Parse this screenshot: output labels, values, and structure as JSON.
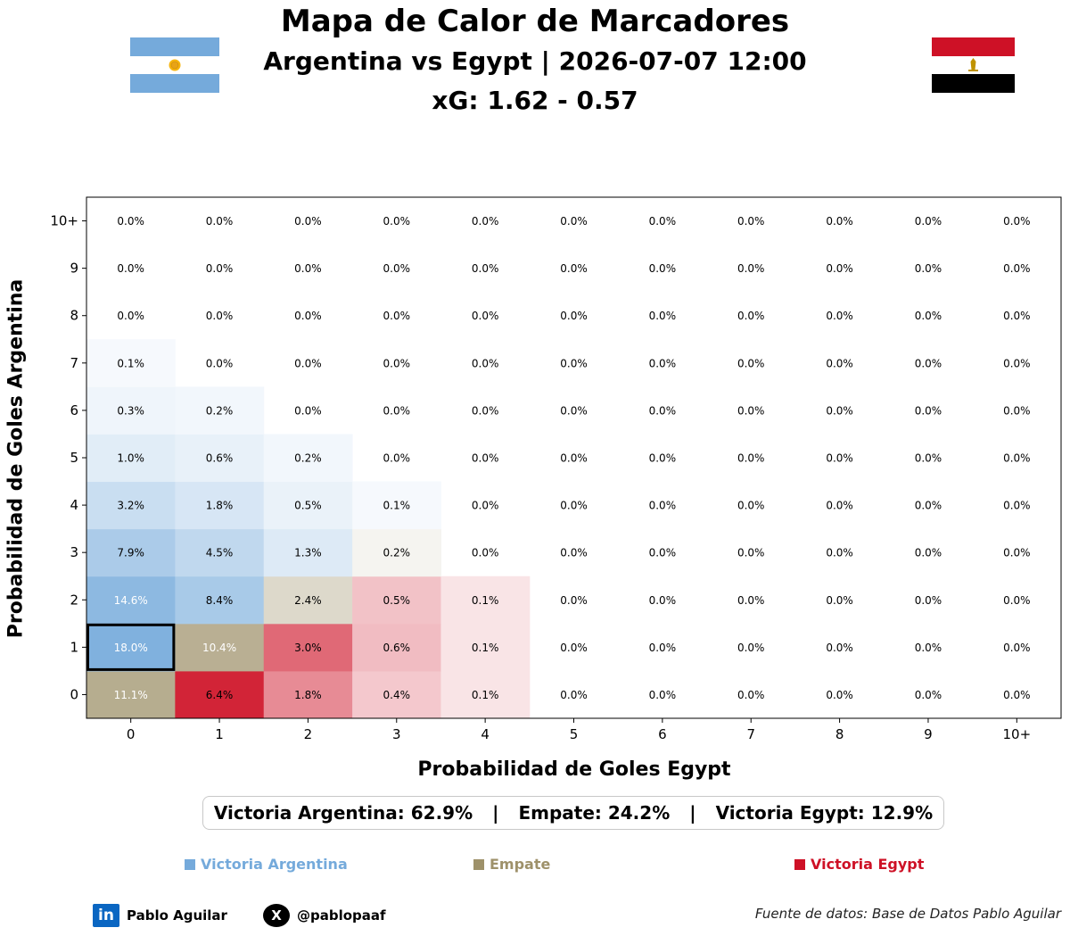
{
  "header": {
    "title": "Mapa de Calor de Marcadores",
    "match": "Argentina vs Egypt | 2026-07-07 12:00",
    "xg": "xG: 1.62 - 0.57"
  },
  "flags": {
    "left": "argentina-flag",
    "right": "egypt-flag"
  },
  "colors": {
    "argentina": "#75aadb",
    "draw": "#9e916a",
    "egypt": "#ce1126",
    "highlight_border": "#000000"
  },
  "chart_data": {
    "type": "heatmap",
    "xlabel": "Probabilidad de Goles Egypt",
    "ylabel": "Probabilidad de Goles Argentina",
    "x_categories": [
      "0",
      "1",
      "2",
      "3",
      "4",
      "5",
      "6",
      "7",
      "8",
      "9",
      "10+"
    ],
    "y_categories": [
      "0",
      "1",
      "2",
      "3",
      "4",
      "5",
      "6",
      "7",
      "8",
      "9",
      "10+"
    ],
    "values": [
      [
        11.1,
        6.4,
        1.8,
        0.4,
        0.1,
        0.0,
        0.0,
        0.0,
        0.0,
        0.0,
        0.0
      ],
      [
        18.0,
        10.4,
        3.0,
        0.6,
        0.1,
        0.0,
        0.0,
        0.0,
        0.0,
        0.0,
        0.0
      ],
      [
        14.6,
        8.4,
        2.4,
        0.5,
        0.1,
        0.0,
        0.0,
        0.0,
        0.0,
        0.0,
        0.0
      ],
      [
        7.9,
        4.5,
        1.3,
        0.2,
        0.0,
        0.0,
        0.0,
        0.0,
        0.0,
        0.0,
        0.0
      ],
      [
        3.2,
        1.8,
        0.5,
        0.1,
        0.0,
        0.0,
        0.0,
        0.0,
        0.0,
        0.0,
        0.0
      ],
      [
        1.0,
        0.6,
        0.2,
        0.0,
        0.0,
        0.0,
        0.0,
        0.0,
        0.0,
        0.0,
        0.0
      ],
      [
        0.3,
        0.2,
        0.0,
        0.0,
        0.0,
        0.0,
        0.0,
        0.0,
        0.0,
        0.0,
        0.0
      ],
      [
        0.1,
        0.0,
        0.0,
        0.0,
        0.0,
        0.0,
        0.0,
        0.0,
        0.0,
        0.0,
        0.0
      ],
      [
        0.0,
        0.0,
        0.0,
        0.0,
        0.0,
        0.0,
        0.0,
        0.0,
        0.0,
        0.0,
        0.0
      ],
      [
        0.0,
        0.0,
        0.0,
        0.0,
        0.0,
        0.0,
        0.0,
        0.0,
        0.0,
        0.0,
        0.0
      ],
      [
        0.0,
        0.0,
        0.0,
        0.0,
        0.0,
        0.0,
        0.0,
        0.0,
        0.0,
        0.0,
        0.0
      ]
    ],
    "value_format": "percent_1_decimal",
    "highlighted_cell": {
      "argentina_goals": "1",
      "egypt_goals": "0"
    },
    "grid": false
  },
  "summary": {
    "home_win": "Victoria Argentina: 62.9%",
    "draw": "Empate: 24.2%",
    "away_win": "Victoria Egypt: 12.9%",
    "separator": "|"
  },
  "legend": {
    "home": "Victoria Argentina",
    "draw": "Empate",
    "away": "Victoria Egypt"
  },
  "footer": {
    "linkedin_glyph": "in",
    "linkedin_name": "Pablo Aguilar",
    "x_glyph": "X",
    "x_handle": "@pablopaaf",
    "source": "Fuente de datos: Base de Datos Pablo Aguilar"
  }
}
